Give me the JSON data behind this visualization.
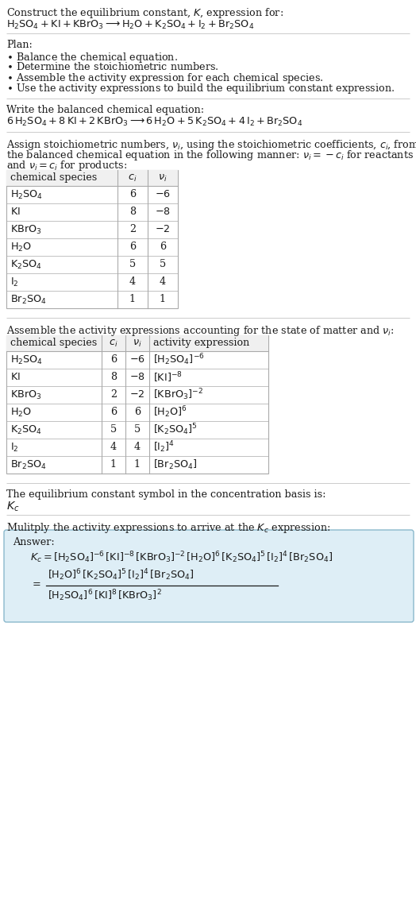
{
  "bg_color": "#ffffff",
  "answer_box_color": "#deeef6",
  "table_line_color": "#aaaaaa",
  "text_color": "#1a1a1a",
  "font_size": 9.2,
  "font_family": "DejaVu Serif",
  "sections": {
    "title1": "Construct the equilibrium constant, $K$, expression for:",
    "title2": "$\\mathrm{H_2SO_4 + KI + KBrO_3 \\longrightarrow H_2O + K_2SO_4 + I_2 + Br_2SO_4}$",
    "plan_header": "Plan:",
    "plan_items": [
      "$\\bullet$ Balance the chemical equation.",
      "$\\bullet$ Determine the stoichiometric numbers.",
      "$\\bullet$ Assemble the activity expression for each chemical species.",
      "$\\bullet$ Use the activity expressions to build the equilibrium constant expression."
    ],
    "balanced_eq_header": "Write the balanced chemical equation:",
    "balanced_eq": "$6\\,\\mathrm{H_2SO_4} + 8\\,\\mathrm{KI} + 2\\,\\mathrm{KBrO_3} \\longrightarrow 6\\,\\mathrm{H_2O} + 5\\,\\mathrm{K_2SO_4} + 4\\,\\mathrm{I_2} + \\mathrm{Br_2SO_4}$",
    "stoich_text1": "Assign stoichiometric numbers, $\\nu_i$, using the stoichiometric coefficients, $c_i$, from",
    "stoich_text2": "the balanced chemical equation in the following manner: $\\nu_i = -c_i$ for reactants",
    "stoich_text3": "and $\\nu_i = c_i$ for products:",
    "table1_header": [
      "chemical species",
      "$c_i$",
      "$\\nu_i$"
    ],
    "table1_rows": [
      [
        "$\\mathrm{H_2SO_4}$",
        "6",
        "$-6$"
      ],
      [
        "$\\mathrm{KI}$",
        "8",
        "$-8$"
      ],
      [
        "$\\mathrm{KBrO_3}$",
        "2",
        "$-2$"
      ],
      [
        "$\\mathrm{H_2O}$",
        "6",
        "6"
      ],
      [
        "$\\mathrm{K_2SO_4}$",
        "5",
        "5"
      ],
      [
        "$\\mathrm{I_2}$",
        "4",
        "4"
      ],
      [
        "$\\mathrm{Br_2SO_4}$",
        "1",
        "1"
      ]
    ],
    "activity_text": "Assemble the activity expressions accounting for the state of matter and $\\nu_i$:",
    "table2_header": [
      "chemical species",
      "$c_i$",
      "$\\nu_i$",
      "activity expression"
    ],
    "table2_rows": [
      [
        "$\\mathrm{H_2SO_4}$",
        "6",
        "$-6$",
        "$[\\mathrm{H_2SO_4}]^{-6}$"
      ],
      [
        "$\\mathrm{KI}$",
        "8",
        "$-8$",
        "$[\\mathrm{KI}]^{-8}$"
      ],
      [
        "$\\mathrm{KBrO_3}$",
        "2",
        "$-2$",
        "$[\\mathrm{KBrO_3}]^{-2}$"
      ],
      [
        "$\\mathrm{H_2O}$",
        "6",
        "6",
        "$[\\mathrm{H_2O}]^{6}$"
      ],
      [
        "$\\mathrm{K_2SO_4}$",
        "5",
        "5",
        "$[\\mathrm{K_2SO_4}]^{5}$"
      ],
      [
        "$\\mathrm{I_2}$",
        "4",
        "4",
        "$[\\mathrm{I_2}]^{4}$"
      ],
      [
        "$\\mathrm{Br_2SO_4}$",
        "1",
        "1",
        "$[\\mathrm{Br_2SO_4}]$"
      ]
    ],
    "kc_header": "The equilibrium constant symbol in the concentration basis is:",
    "kc_symbol": "$K_c$",
    "multiply_header": "Mulitply the activity expressions to arrive at the $K_c$ expression:",
    "answer_label": "Answer:",
    "answer_line1": "$K_c = [\\mathrm{H_2SO_4}]^{-6}\\,[\\mathrm{KI}]^{-8}\\,[\\mathrm{KBrO_3}]^{-2}\\,[\\mathrm{H_2O}]^{6}\\,[\\mathrm{K_2SO_4}]^{5}\\,[\\mathrm{I_2}]^{4}\\,[\\mathrm{Br_2SO_4}]$",
    "answer_eq": "$=$",
    "answer_num": "$[\\mathrm{H_2O}]^{6}\\,[\\mathrm{K_2SO_4}]^{5}\\,[\\mathrm{I_2}]^{4}\\,[\\mathrm{Br_2SO_4}]$",
    "answer_den": "$[\\mathrm{H_2SO_4}]^{6}\\,[\\mathrm{KI}]^{8}\\,[\\mathrm{KBrO_3}]^{2}$"
  }
}
